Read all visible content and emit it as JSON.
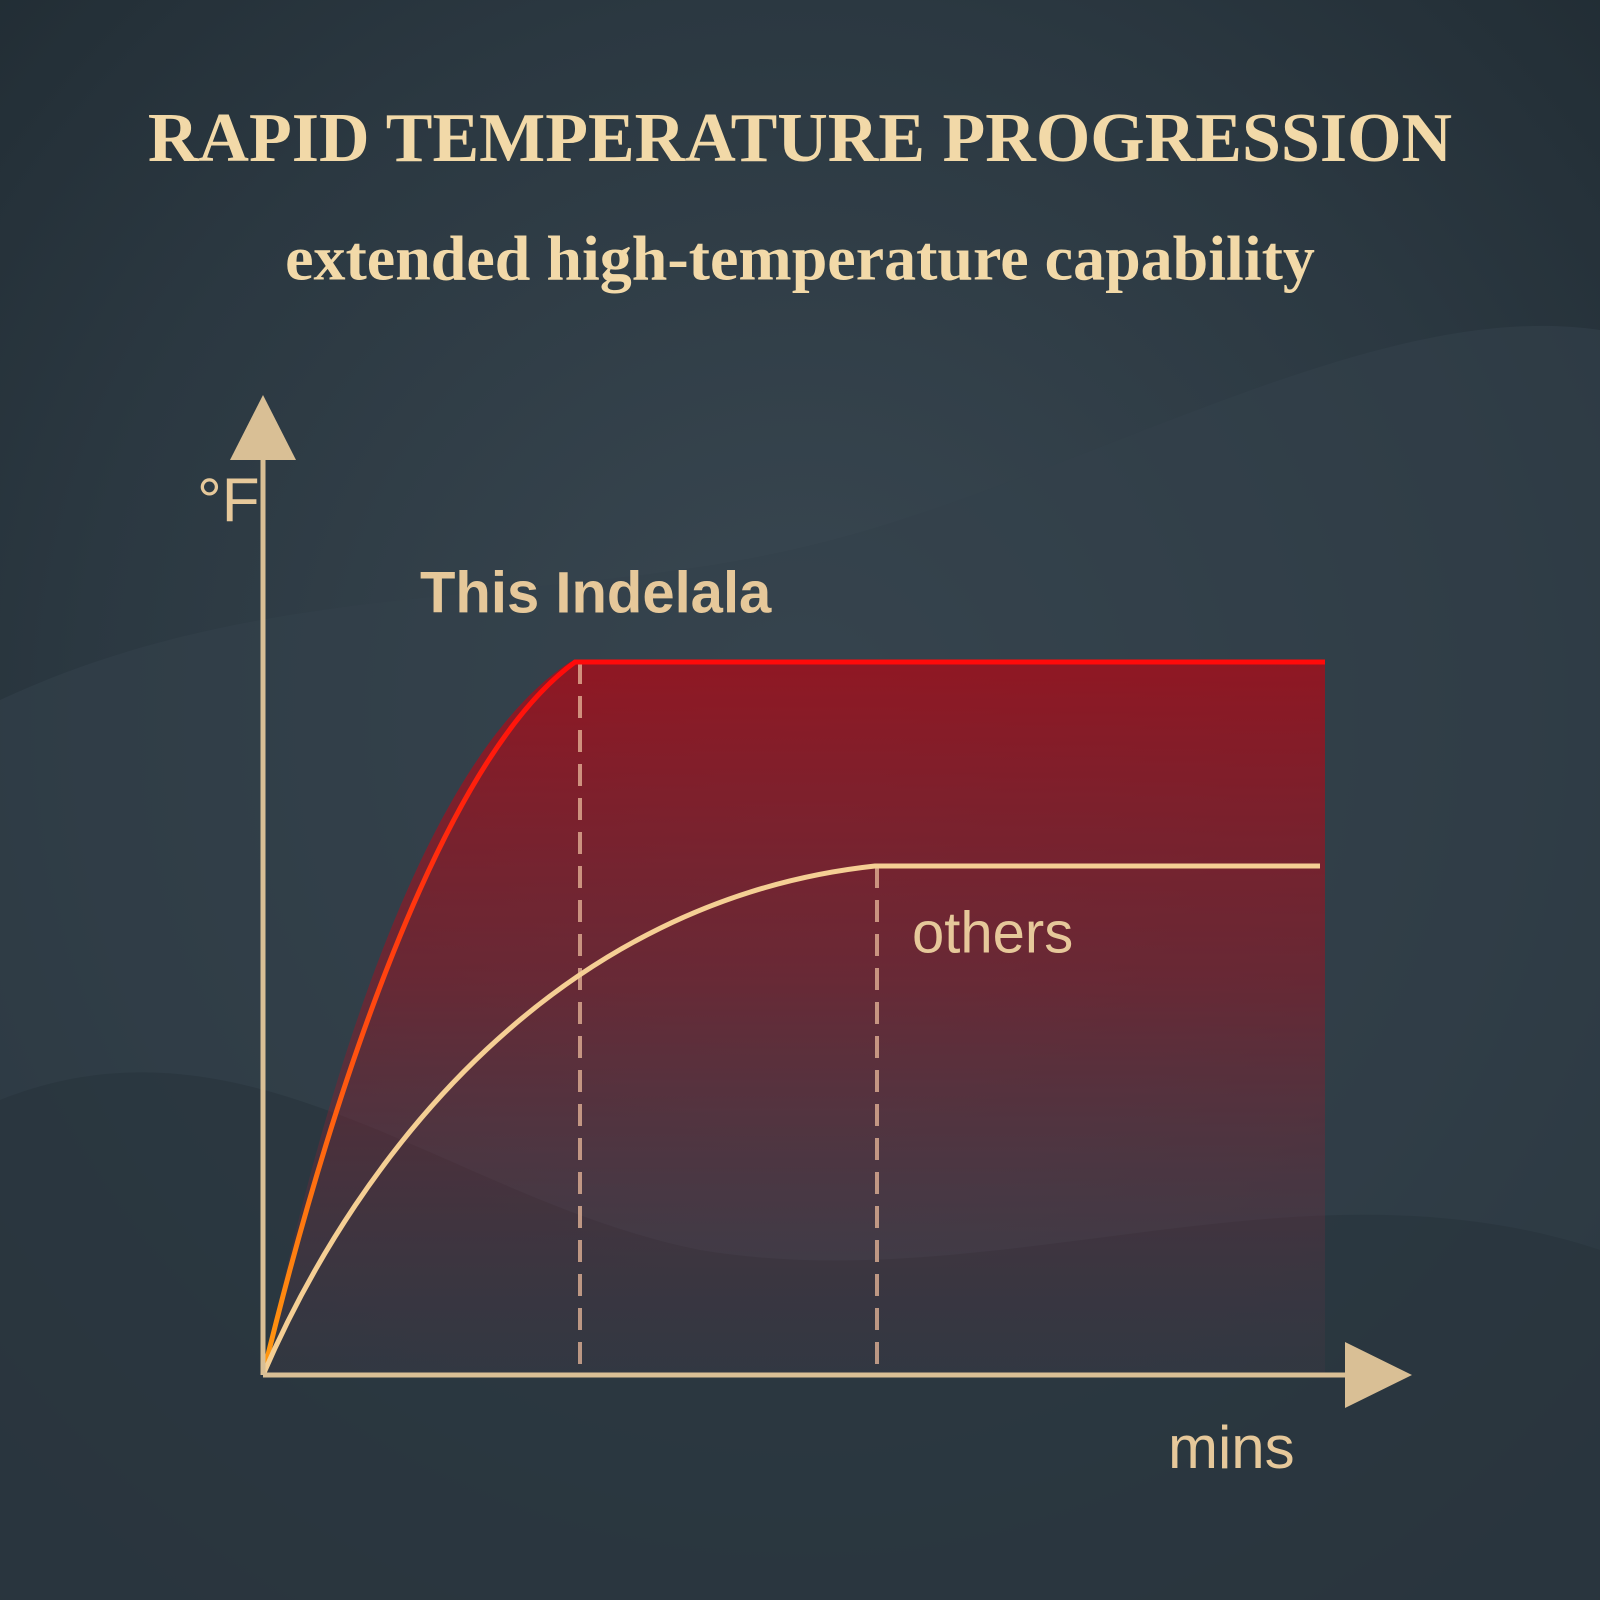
{
  "header": {
    "title": "RAPID TEMPERATURE PROGRESSION",
    "subtitle": "extended high-temperature capability"
  },
  "diagram": {
    "y_axis_label": "°F",
    "x_axis_label": "mins",
    "curves": [
      {
        "label": "This Indelala"
      },
      {
        "label": "others"
      }
    ]
  }
}
